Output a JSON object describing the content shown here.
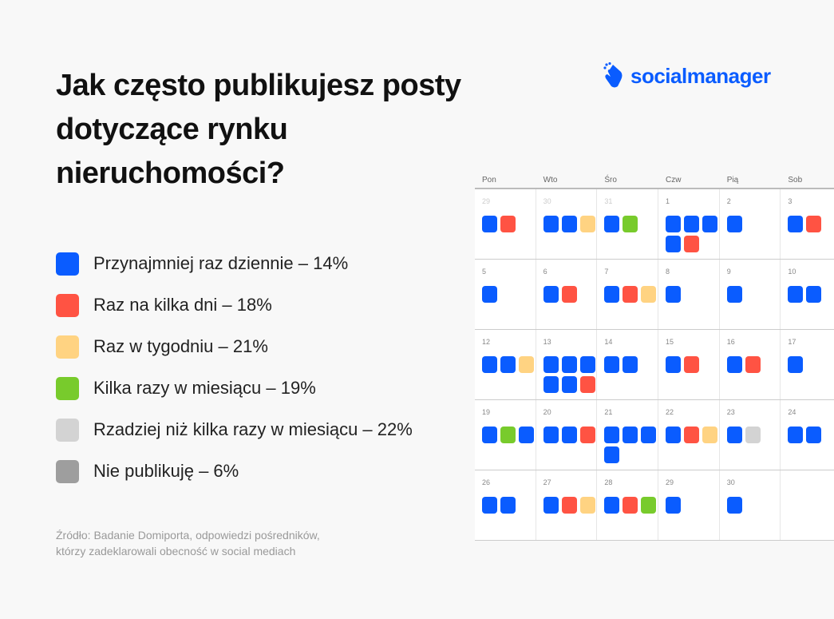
{
  "title": "Jak często publikujesz posty dotyczące rynku nieruchomości?",
  "brand": {
    "name": "socialmanager",
    "icon": "hand-click-icon",
    "color": "#0a5cff"
  },
  "colors": {
    "b": "#0a5cff",
    "r": "#ff5343",
    "y": "#ffd382",
    "g": "#78cb2c",
    "l": "#d3d3d3",
    "d": "#9e9e9e"
  },
  "legend": [
    {
      "label": "Przynajmniej raz dziennie – 14%",
      "value": 14,
      "color": "#0a5cff"
    },
    {
      "label": "Raz na kilka dni – 18%",
      "value": 18,
      "color": "#ff5343"
    },
    {
      "label": "Raz w tygodniu – 21%",
      "value": 21,
      "color": "#ffd382"
    },
    {
      "label": "Kilka razy w miesiącu – 19%",
      "value": 19,
      "color": "#78cb2c"
    },
    {
      "label": "Rzadziej niż kilka razy w miesiącu – 22%",
      "value": 22,
      "color": "#d3d3d3"
    },
    {
      "label": "Nie publikuję – 6%",
      "value": 6,
      "color": "#9e9e9e"
    }
  ],
  "source": [
    "Źródło: Badanie Domiporta, odpowiedzi pośredników,",
    "którzy zadeklarowali obecność w social mediach"
  ],
  "calendar": {
    "days": [
      "Pon",
      "Wto",
      "Śro",
      "Czw",
      "Pią",
      "Sob"
    ],
    "weeks": [
      [
        {
          "d": "29",
          "m": true,
          "p": "br"
        },
        {
          "d": "30",
          "m": true,
          "p": "bby"
        },
        {
          "d": "31",
          "m": true,
          "p": "bg"
        },
        {
          "d": "1",
          "p": "bbbbr"
        },
        {
          "d": "2",
          "p": "b"
        },
        {
          "d": "3",
          "p": "br"
        }
      ],
      [
        {
          "d": "5",
          "p": "b"
        },
        {
          "d": "6",
          "p": "br"
        },
        {
          "d": "7",
          "p": "bry"
        },
        {
          "d": "8",
          "p": "b"
        },
        {
          "d": "9",
          "p": "b"
        },
        {
          "d": "10",
          "p": "bb"
        }
      ],
      [
        {
          "d": "12",
          "p": "bby"
        },
        {
          "d": "13",
          "p": "bbbbbr"
        },
        {
          "d": "14",
          "p": "bb"
        },
        {
          "d": "15",
          "p": "br"
        },
        {
          "d": "16",
          "p": "br"
        },
        {
          "d": "17",
          "p": "b"
        }
      ],
      [
        {
          "d": "19",
          "p": "bgb"
        },
        {
          "d": "20",
          "p": "bbr"
        },
        {
          "d": "21",
          "p": "bbbb"
        },
        {
          "d": "22",
          "p": "bry"
        },
        {
          "d": "23",
          "p": "bl"
        },
        {
          "d": "24",
          "p": "bb"
        }
      ],
      [
        {
          "d": "26",
          "p": "bb"
        },
        {
          "d": "27",
          "p": "bry"
        },
        {
          "d": "28",
          "p": "brg"
        },
        {
          "d": "29",
          "p": "b"
        },
        {
          "d": "30",
          "p": "b"
        },
        {
          "d": "",
          "p": ""
        }
      ]
    ]
  }
}
